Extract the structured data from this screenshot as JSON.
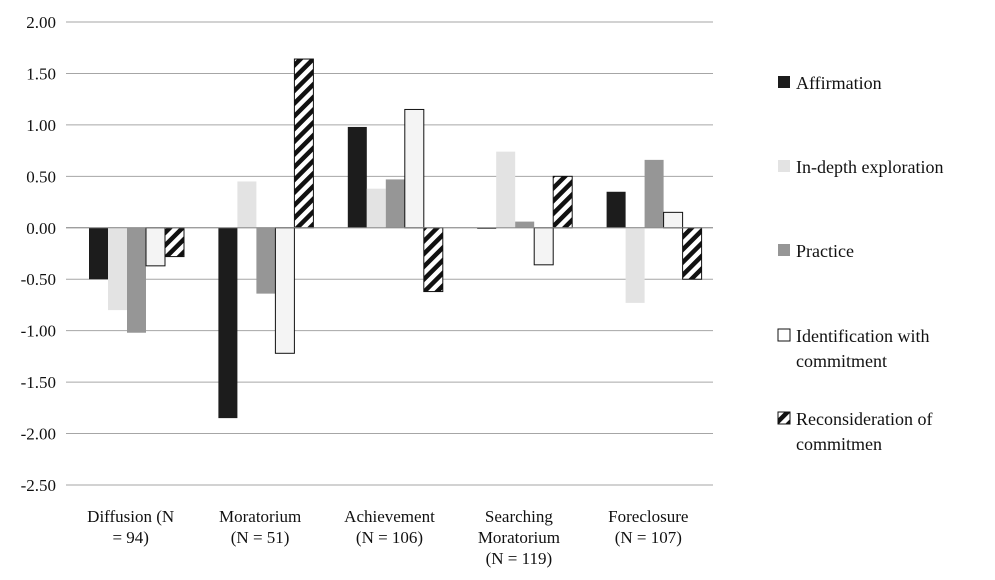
{
  "chart_data": {
    "type": "bar",
    "title": "",
    "xlabel": "",
    "ylabel": "",
    "ylim": [
      -2.5,
      2.0
    ],
    "yticks": [
      2.0,
      1.5,
      1.0,
      0.5,
      0.0,
      -0.5,
      -1.0,
      -1.5,
      -2.0,
      -2.5
    ],
    "ytick_labels": [
      "2.00",
      "1.50",
      "1.00",
      "0.50",
      "0.00",
      "-0.50",
      "-1.00",
      "-1.50",
      "-2.00",
      "-2.50"
    ],
    "grid": "horizontal",
    "legend_position": "right",
    "categories": [
      [
        "Diffusion (N",
        "= 94)"
      ],
      [
        "Moratorium",
        "(N = 51)"
      ],
      [
        "Achievement",
        "(N = 106)"
      ],
      [
        "Searching",
        "Moratorium",
        "(N = 119)"
      ],
      [
        "Foreclosure",
        "(N = 107)"
      ]
    ],
    "series": [
      {
        "name": [
          "Affirmation"
        ],
        "style": "solid",
        "color": "#1c1c1c",
        "values": [
          -0.5,
          -1.85,
          0.98,
          -0.01,
          0.35
        ]
      },
      {
        "name": [
          "In-depth exploration"
        ],
        "style": "solid",
        "color": "#e3e3e3",
        "values": [
          -0.8,
          0.45,
          0.38,
          0.74,
          -0.73
        ]
      },
      {
        "name": [
          "Practice"
        ],
        "style": "solid",
        "color": "#969696",
        "values": [
          -1.02,
          -0.64,
          0.47,
          0.06,
          0.66
        ]
      },
      {
        "name": [
          "Identification with",
          "commitment"
        ],
        "style": "outlined",
        "color": "#f4f4f4",
        "values": [
          -0.37,
          -1.22,
          1.15,
          -0.36,
          0.15
        ]
      },
      {
        "name": [
          "Reconsideration of",
          "commitmen"
        ],
        "style": "hatched",
        "color": "#ffffff",
        "values": [
          -0.28,
          1.64,
          -0.62,
          0.5,
          -0.5
        ]
      }
    ]
  }
}
